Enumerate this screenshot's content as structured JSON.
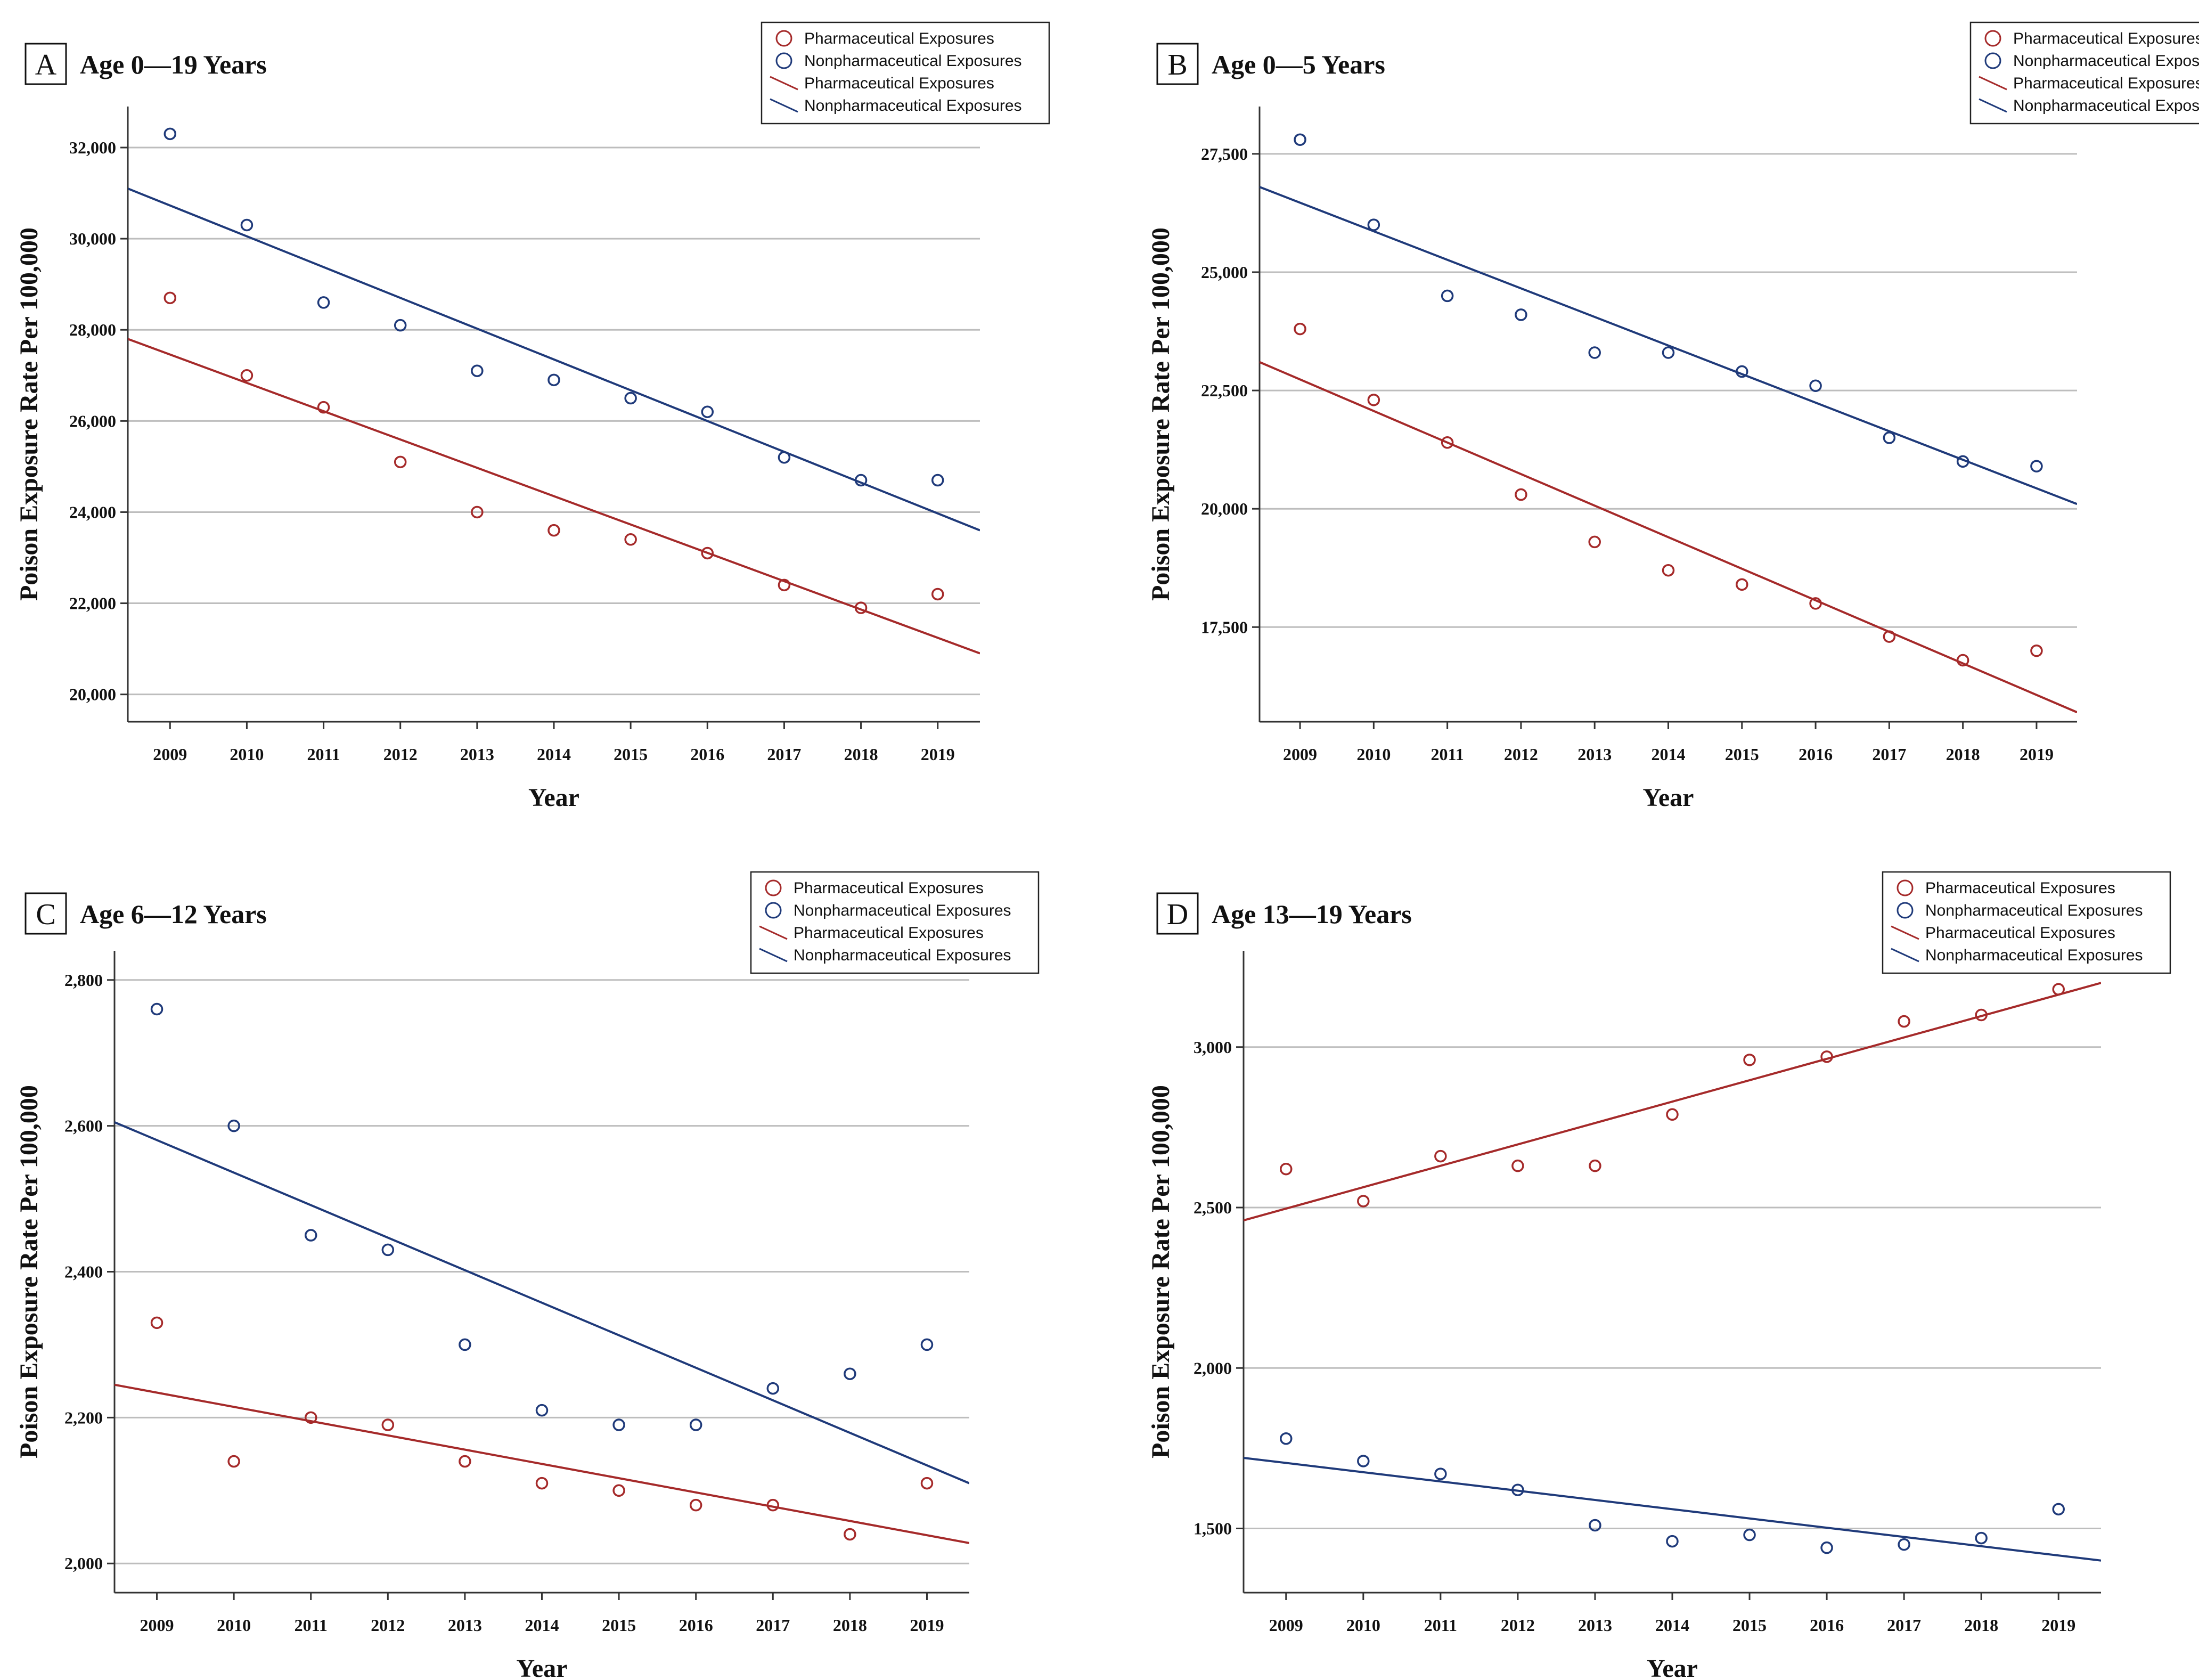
{
  "colors": {
    "pharma": "#a52a2a",
    "nonpharma": "#1f3a7a",
    "grid": "#bdbdbd",
    "axis": "#333333"
  },
  "chart_data": [
    {
      "type": "scatter",
      "letter": "A",
      "title": "Age 0—19 Years",
      "xlabel": "Year",
      "ylabel": "Poison Exposure Rate Per 100,000",
      "x": [
        2009,
        2010,
        2011,
        2012,
        2013,
        2014,
        2015,
        2016,
        2017,
        2018,
        2019
      ],
      "xlim": [
        2008.45,
        2019.55
      ],
      "ylim": [
        19400,
        32900
      ],
      "yticks": [
        20000,
        22000,
        24000,
        26000,
        28000,
        30000,
        32000
      ],
      "ytick_labels": [
        "20,000",
        "22,000",
        "24,000",
        "26,000",
        "28,000",
        "30,000",
        "32,000"
      ],
      "grid": true,
      "legend": [
        "Pharmaceutical Exposures",
        "Nonpharmaceutical Exposures",
        "Pharmaceutical Exposures",
        "Nonpharmaceutical Exposures"
      ],
      "series": [
        {
          "name": "Pharmaceutical Exposures",
          "values": [
            28700,
            27000,
            26300,
            25100,
            24000,
            23600,
            23400,
            23100,
            22400,
            21900,
            22200
          ],
          "fit": [
            27800,
            20900
          ]
        },
        {
          "name": "Nonpharmaceutical Exposures",
          "values": [
            32300,
            30300,
            28600,
            28100,
            27100,
            26900,
            26500,
            26200,
            25200,
            24700,
            24700
          ],
          "fit": [
            31100,
            23600
          ]
        }
      ]
    },
    {
      "type": "scatter",
      "letter": "B",
      "title": "Age 0—5 Years",
      "xlabel": "Year",
      "ylabel": "Poison Exposure Rate Per 100,000",
      "x": [
        2009,
        2010,
        2011,
        2012,
        2013,
        2014,
        2015,
        2016,
        2017,
        2018,
        2019
      ],
      "xlim": [
        2008.45,
        2019.55
      ],
      "ylim": [
        15500,
        28500
      ],
      "yticks": [
        17500,
        20000,
        22500,
        25000,
        27500
      ],
      "ytick_labels": [
        "17,500",
        "20,000",
        "22,500",
        "25,000",
        "27,500"
      ],
      "grid": true,
      "legend": [
        "Pharmaceutical Exposures",
        "Nonpharmaceutical Exposures",
        "Pharmaceutical Exposures",
        "Nonpharmaceutical Exposures"
      ],
      "series": [
        {
          "name": "Pharmaceutical Exposures",
          "values": [
            23800,
            22300,
            21400,
            20300,
            19300,
            18700,
            18400,
            18000,
            17300,
            16800,
            17000
          ],
          "fit": [
            23100,
            15700
          ]
        },
        {
          "name": "Nonpharmaceutical Exposures",
          "values": [
            27800,
            26000,
            24500,
            24100,
            23300,
            23300,
            22900,
            22600,
            21500,
            21000,
            20900
          ],
          "fit": [
            26800,
            20100
          ]
        }
      ]
    },
    {
      "type": "scatter",
      "letter": "C",
      "title": "Age 6—12 Years",
      "xlabel": "Year",
      "ylabel": "Poison Exposure Rate Per 100,000",
      "x": [
        2009,
        2010,
        2011,
        2012,
        2013,
        2014,
        2015,
        2016,
        2017,
        2018,
        2019
      ],
      "xlim": [
        2008.45,
        2019.55
      ],
      "ylim": [
        1960,
        2840
      ],
      "yticks": [
        2000,
        2200,
        2400,
        2600,
        2800
      ],
      "ytick_labels": [
        "2,000",
        "2,200",
        "2,400",
        "2,600",
        "2,800"
      ],
      "grid": true,
      "legend": [
        "Pharmaceutical Exposures",
        "Nonpharmaceutical Exposures",
        "Pharmaceutical Exposures",
        "Nonpharmaceutical Exposures"
      ],
      "series": [
        {
          "name": "Pharmaceutical Exposures",
          "values": [
            2330,
            2140,
            2200,
            2190,
            2140,
            2110,
            2100,
            2080,
            2080,
            2040,
            2110
          ],
          "fit": [
            2245,
            2028
          ]
        },
        {
          "name": "Nonpharmaceutical Exposures",
          "values": [
            2760,
            2600,
            2450,
            2430,
            2300,
            2210,
            2190,
            2190,
            2240,
            2260,
            2300
          ],
          "fit": [
            2605,
            2110
          ]
        }
      ]
    },
    {
      "type": "scatter",
      "letter": "D",
      "title": "Age 13—19 Years",
      "xlabel": "Year",
      "ylabel": "Poison Exposure Rate Per 100,000",
      "x": [
        2009,
        2010,
        2011,
        2012,
        2013,
        2014,
        2015,
        2016,
        2017,
        2018,
        2019
      ],
      "xlim": [
        2008.45,
        2019.55
      ],
      "ylim": [
        1300,
        3300
      ],
      "yticks": [
        1500,
        2000,
        2500,
        3000
      ],
      "ytick_labels": [
        "1,500",
        "2,000",
        "2,500",
        "3,000"
      ],
      "grid": true,
      "legend": [
        "Pharmaceutical Exposures",
        "Nonpharmaceutical Exposures",
        "Pharmaceutical Exposures",
        "Nonpharmaceutical Exposures"
      ],
      "series": [
        {
          "name": "Pharmaceutical Exposures",
          "values": [
            2620,
            2520,
            2660,
            2630,
            2630,
            2790,
            2960,
            2970,
            3080,
            3100,
            3180
          ],
          "fit": [
            2460,
            3200
          ]
        },
        {
          "name": "Nonpharmaceutical Exposures",
          "values": [
            1780,
            1710,
            1670,
            1620,
            1510,
            1460,
            1480,
            1440,
            1450,
            1470,
            1560
          ],
          "fit": [
            1720,
            1400
          ]
        }
      ]
    }
  ]
}
